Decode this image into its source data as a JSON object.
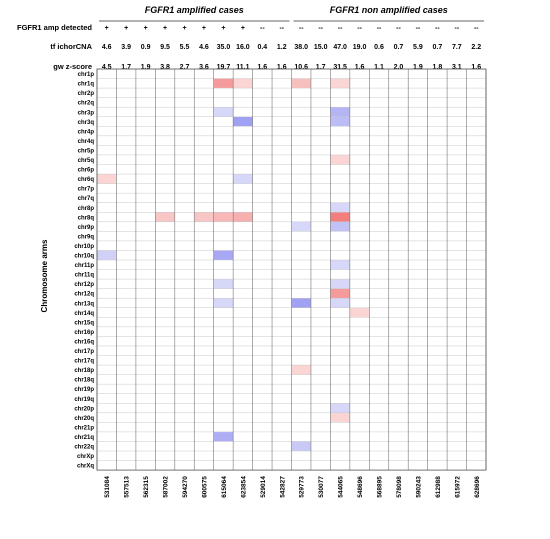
{
  "chart_data": {
    "type": "heatmap",
    "groups": [
      {
        "label": "FGFR1 amplified cases",
        "first": 0,
        "last": 9
      },
      {
        "label": "FGFR1 non amplified cases",
        "first": 10,
        "last": 19
      }
    ],
    "header_rows": [
      {
        "label": "FGFR1 amp detected",
        "values": [
          "+",
          "+",
          "+",
          "+",
          "+",
          "+",
          "+",
          "+",
          "--",
          "--",
          "--",
          "--",
          "--",
          "--",
          "--",
          "--",
          "--",
          "--",
          "--",
          "--"
        ]
      },
      {
        "label": "tf ichorCNA",
        "values": [
          "4.6",
          "3.9",
          "0.9",
          "9.5",
          "5.5",
          "4.6",
          "35.0",
          "16.0",
          "0.4",
          "1.2",
          "38.0",
          "15.0",
          "47.0",
          "19.0",
          "0.6",
          "0.7",
          "5.9",
          "0.7",
          "7.7",
          "2.2"
        ]
      },
      {
        "label": "gw z-score",
        "values": [
          "4.5",
          "1.7",
          "1.9",
          "3.8",
          "2.7",
          "3.6",
          "19.7",
          "11.1",
          "1.6",
          "1.6",
          "10.6",
          "1.7",
          "31.5",
          "1.6",
          "1.1",
          "2.0",
          "1.9",
          "1.8",
          "3.1",
          "1.6"
        ]
      }
    ],
    "samples": [
      "531084",
      "557513",
      "562315",
      "587002",
      "594270",
      "600575",
      "615064",
      "623854",
      "529014",
      "542827",
      "529773",
      "530077",
      "544065",
      "548696",
      "568895",
      "578098",
      "590243",
      "612988",
      "615972",
      "628696"
    ],
    "ylabel": "Chromosome arms",
    "arms": [
      "chr1p",
      "chr1q",
      "chr2p",
      "chr2q",
      "chr3p",
      "chr3q",
      "chr4p",
      "chr4q",
      "chr5p",
      "chr5q",
      "chr6p",
      "chr6q",
      "chr7p",
      "chr7q",
      "chr8p",
      "chr8q",
      "chr9p",
      "chr9q",
      "chr10p",
      "chr10q",
      "chr11p",
      "chr11q",
      "chr12p",
      "chr12q",
      "chr13q",
      "chr14q",
      "chr15q",
      "chr16p",
      "chr16q",
      "chr17p",
      "chr17q",
      "chr18p",
      "chr18q",
      "chr19p",
      "chr19q",
      "chr20p",
      "chr20q",
      "chr21p",
      "chr21q",
      "chr22q",
      "chrXp",
      "chrXq"
    ],
    "color_scale": {
      "gain": "#f07070",
      "loss": "#7878ee",
      "neutral": "#ffffff"
    },
    "cells": [
      {
        "arm": "chr1q",
        "sample": 6,
        "value": 0.7
      },
      {
        "arm": "chr1q",
        "sample": 7,
        "value": 0.3
      },
      {
        "arm": "chr1q",
        "sample": 10,
        "value": 0.45
      },
      {
        "arm": "chr1q",
        "sample": 12,
        "value": 0.3
      },
      {
        "arm": "chr3p",
        "sample": 6,
        "value": -0.3
      },
      {
        "arm": "chr3p",
        "sample": 12,
        "value": -0.55
      },
      {
        "arm": "chr3q",
        "sample": 7,
        "value": -0.7
      },
      {
        "arm": "chr3q",
        "sample": 12,
        "value": -0.5
      },
      {
        "arm": "chr5q",
        "sample": 12,
        "value": 0.3
      },
      {
        "arm": "chr6q",
        "sample": 0,
        "value": 0.3
      },
      {
        "arm": "chr6q",
        "sample": 7,
        "value": -0.3
      },
      {
        "arm": "chr8p",
        "sample": 12,
        "value": -0.3
      },
      {
        "arm": "chr8q",
        "sample": 3,
        "value": 0.4
      },
      {
        "arm": "chr8q",
        "sample": 5,
        "value": 0.4
      },
      {
        "arm": "chr8q",
        "sample": 6,
        "value": 0.5
      },
      {
        "arm": "chr8q",
        "sample": 7,
        "value": 0.55
      },
      {
        "arm": "chr8q",
        "sample": 12,
        "value": 0.9
      },
      {
        "arm": "chr9p",
        "sample": 10,
        "value": -0.3
      },
      {
        "arm": "chr9p",
        "sample": 12,
        "value": -0.45
      },
      {
        "arm": "chr10q",
        "sample": 0,
        "value": -0.35
      },
      {
        "arm": "chr10q",
        "sample": 6,
        "value": -0.65
      },
      {
        "arm": "chr11p",
        "sample": 12,
        "value": -0.3
      },
      {
        "arm": "chr12p",
        "sample": 6,
        "value": -0.3
      },
      {
        "arm": "chr12p",
        "sample": 12,
        "value": -0.3
      },
      {
        "arm": "chr12q",
        "sample": 12,
        "value": 0.7
      },
      {
        "arm": "chr13q",
        "sample": 6,
        "value": -0.3
      },
      {
        "arm": "chr13q",
        "sample": 10,
        "value": -0.7
      },
      {
        "arm": "chr13q",
        "sample": 12,
        "value": -0.3
      },
      {
        "arm": "chr14q",
        "sample": 13,
        "value": 0.3
      },
      {
        "arm": "chr18p",
        "sample": 10,
        "value": 0.3
      },
      {
        "arm": "chr20p",
        "sample": 12,
        "value": -0.3
      },
      {
        "arm": "chr20q",
        "sample": 12,
        "value": 0.3
      },
      {
        "arm": "chr21q",
        "sample": 6,
        "value": -0.6
      },
      {
        "arm": "chr22q",
        "sample": 10,
        "value": -0.4
      }
    ]
  }
}
